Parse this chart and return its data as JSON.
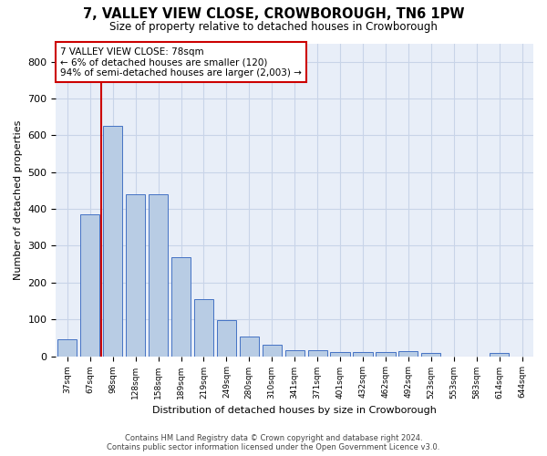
{
  "title": "7, VALLEY VIEW CLOSE, CROWBOROUGH, TN6 1PW",
  "subtitle": "Size of property relative to detached houses in Crowborough",
  "xlabel": "Distribution of detached houses by size in Crowborough",
  "ylabel": "Number of detached properties",
  "footer_line1": "Contains HM Land Registry data © Crown copyright and database right 2024.",
  "footer_line2": "Contains public sector information licensed under the Open Government Licence v3.0.",
  "bar_labels": [
    "37sqm",
    "67sqm",
    "98sqm",
    "128sqm",
    "158sqm",
    "189sqm",
    "219sqm",
    "249sqm",
    "280sqm",
    "310sqm",
    "341sqm",
    "371sqm",
    "401sqm",
    "432sqm",
    "462sqm",
    "492sqm",
    "523sqm",
    "553sqm",
    "583sqm",
    "614sqm",
    "644sqm"
  ],
  "bar_values": [
    45,
    385,
    625,
    440,
    440,
    270,
    155,
    97,
    53,
    30,
    17,
    17,
    12,
    12,
    12,
    15,
    8,
    0,
    0,
    8,
    0
  ],
  "bar_color": "#b8cce4",
  "bar_edge_color": "#4472c4",
  "grid_color": "#c8d4e8",
  "background_color": "#e8eef8",
  "annotation_line1": "7 VALLEY VIEW CLOSE: 78sqm",
  "annotation_line2": "← 6% of detached houses are smaller (120)",
  "annotation_line3": "94% of semi-detached houses are larger (2,003) →",
  "annotation_box_color": "#cc0000",
  "red_line_x": 1.5,
  "ylim": [
    0,
    850
  ],
  "yticks": [
    0,
    100,
    200,
    300,
    400,
    500,
    600,
    700,
    800
  ]
}
